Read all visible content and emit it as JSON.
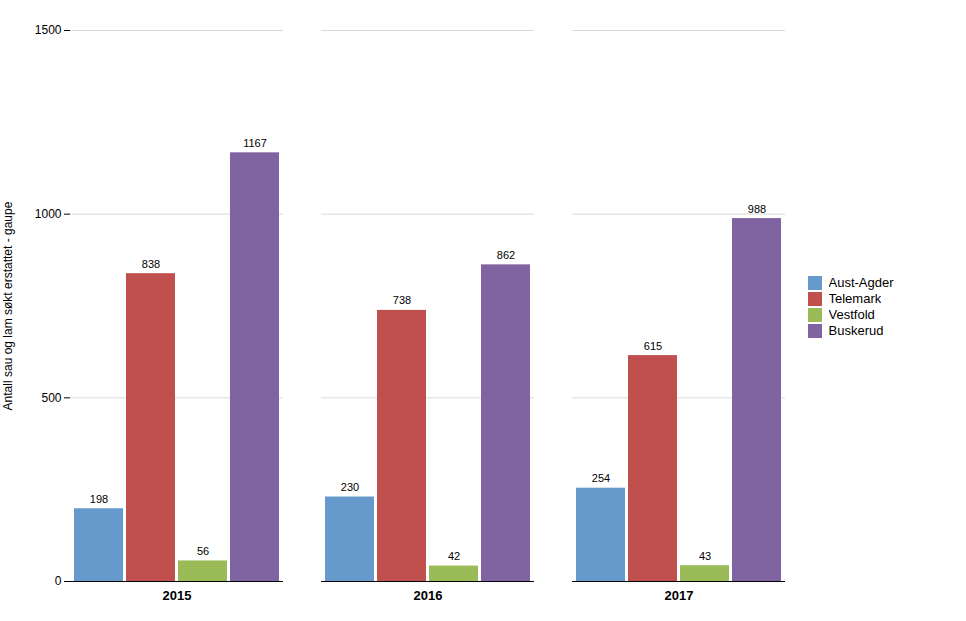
{
  "chart_data": {
    "type": "bar",
    "categories": [
      "2015",
      "2016",
      "2017"
    ],
    "series": [
      {
        "name": "Aust-Agder",
        "color": "#6699CC",
        "values": [
          198,
          230,
          254
        ]
      },
      {
        "name": "Telemark",
        "color": "#C0504D",
        "values": [
          838,
          738,
          615
        ]
      },
      {
        "name": "Vestfold",
        "color": "#9BBB59",
        "values": [
          56,
          42,
          43
        ]
      },
      {
        "name": "Buskerud",
        "color": "#8064A2",
        "values": [
          1167,
          862,
          988
        ]
      }
    ],
    "ylabel": "Antall sau og lam søkt erstattet - gaupe",
    "ylim": [
      0,
      1500
    ],
    "yticks": [
      0,
      500,
      1000,
      1500
    ],
    "grid": true,
    "legend": "right",
    "data_labels": true
  }
}
